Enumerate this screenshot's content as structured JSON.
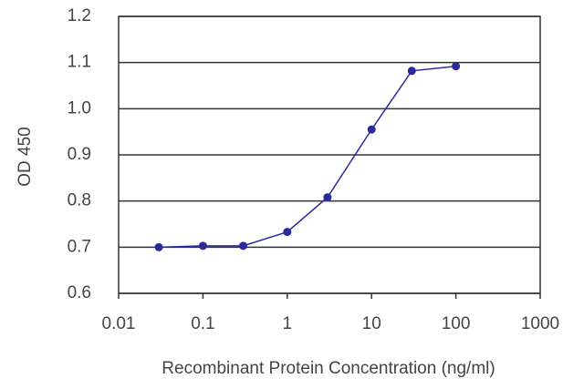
{
  "chart_data": {
    "type": "line",
    "xlabel": "Recombinant Protein Concentration (ng/ml)",
    "ylabel": "OD 450",
    "x": [
      0.03,
      0.1,
      0.3,
      1,
      3,
      10,
      30,
      100
    ],
    "series": [
      {
        "color": "#2a2a9a",
        "values": [
          0.7,
          0.703,
          0.703,
          0.733,
          0.808,
          0.955,
          1.082,
          1.092
        ]
      }
    ],
    "xscale": "log",
    "xlim": [
      0.01,
      1000
    ],
    "xticks": [
      0.01,
      0.1,
      1,
      10,
      100,
      1000
    ],
    "ylim": [
      0.6,
      1.2
    ],
    "yticks": [
      0.6,
      0.7,
      0.8,
      0.9,
      {
        "value": 1,
        "label": "1.0"
      },
      1.1,
      1.2
    ],
    "grid": true
  }
}
